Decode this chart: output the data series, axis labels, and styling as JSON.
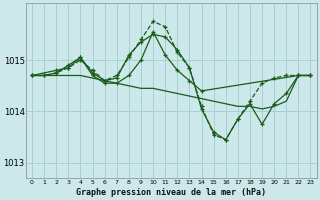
{
  "title": "Graphe pression niveau de la mer (hPa)",
  "background_color": "#cce8ea",
  "grid_color": "#a8d0d0",
  "line_color": "#1a5c1a",
  "xlim": [
    -0.5,
    23.5
  ],
  "ylim": [
    1012.7,
    1016.1
  ],
  "yticks": [
    1013,
    1014,
    1015
  ],
  "xticks": [
    0,
    1,
    2,
    3,
    4,
    5,
    6,
    7,
    8,
    9,
    10,
    11,
    12,
    13,
    14,
    15,
    16,
    17,
    18,
    19,
    20,
    21,
    22,
    23
  ],
  "series": [
    {
      "x": [
        0,
        1,
        2,
        3,
        4,
        5,
        6,
        7,
        8,
        9,
        10,
        11,
        12,
        13,
        14,
        15,
        16,
        17,
        18,
        19,
        20,
        21,
        22,
        23
      ],
      "y": [
        1014.7,
        1014.7,
        1014.75,
        1014.85,
        1015.0,
        1014.8,
        1014.6,
        1014.7,
        1015.05,
        1015.4,
        1015.75,
        1015.65,
        1015.15,
        1014.85,
        1014.1,
        1013.55,
        1013.45,
        1013.85,
        1014.2,
        1014.55,
        1014.65,
        1014.7,
        1014.7,
        1014.7
      ],
      "linestyle": "--",
      "marker": true
    },
    {
      "x": [
        0,
        1,
        2,
        3,
        4,
        5,
        6,
        7,
        8,
        9,
        10,
        11,
        12,
        13,
        14,
        15,
        16,
        17,
        18,
        19,
        20,
        21,
        22,
        23
      ],
      "y": [
        1014.7,
        1014.7,
        1014.7,
        1014.7,
        1014.7,
        1014.65,
        1014.6,
        1014.55,
        1014.5,
        1014.45,
        1014.45,
        1014.4,
        1014.35,
        1014.3,
        1014.25,
        1014.2,
        1014.15,
        1014.1,
        1014.1,
        1014.05,
        1014.1,
        1014.2,
        1014.7,
        1014.7
      ],
      "linestyle": "-",
      "marker": false
    },
    {
      "x": [
        0,
        2,
        3,
        4,
        5,
        6,
        7,
        8,
        9,
        10,
        11,
        12,
        13,
        14,
        15,
        16,
        17,
        18,
        19,
        20,
        21,
        22,
        23
      ],
      "y": [
        1014.7,
        1014.8,
        1014.85,
        1015.05,
        1014.75,
        1014.6,
        1014.65,
        1015.1,
        1015.35,
        1015.5,
        1015.45,
        1015.2,
        1014.85,
        1014.05,
        1013.6,
        1013.45,
        1013.85,
        1014.15,
        1013.75,
        1014.15,
        1014.35,
        1014.7,
        1014.7
      ],
      "linestyle": "-",
      "marker": true
    },
    {
      "x": [
        0,
        1,
        2,
        3,
        4,
        5,
        6,
        7,
        8,
        9,
        10,
        11,
        12,
        13,
        14,
        22,
        23
      ],
      "y": [
        1014.7,
        1014.7,
        1014.75,
        1014.9,
        1015.05,
        1014.7,
        1014.55,
        1014.55,
        1014.7,
        1015.0,
        1015.55,
        1015.1,
        1014.8,
        1014.6,
        1014.4,
        1014.7,
        1014.7
      ],
      "linestyle": "-",
      "marker": true
    }
  ]
}
